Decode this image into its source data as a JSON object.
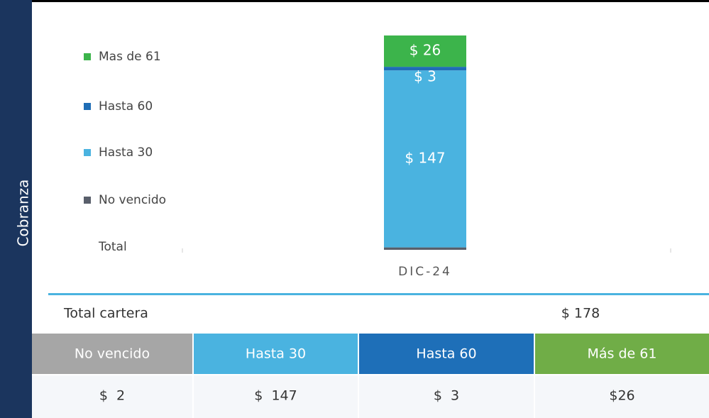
{
  "side_label": "Cobranza",
  "chart_data": {
    "type": "stacked_bar",
    "categories": [
      "DIC-24"
    ],
    "series": [
      {
        "name": "No vencido",
        "color": "#595f6b",
        "values": [
          2
        ],
        "value_labels": [
          "$ 2"
        ]
      },
      {
        "name": "Hasta 30",
        "color": "#4ab3e0",
        "values": [
          147
        ],
        "value_labels": [
          "$ 147"
        ]
      },
      {
        "name": "Hasta 60",
        "color": "#1f6db5",
        "values": [
          3
        ],
        "value_labels": [
          "$ 3"
        ]
      },
      {
        "name": "Mas de 61",
        "color": "#3cb44b",
        "values": [
          26
        ],
        "value_labels": [
          "$ 26"
        ]
      }
    ],
    "legend_total": "Total"
  },
  "table": {
    "total_label": "Total cartera",
    "total_value": "$ 178",
    "columns": [
      {
        "header": "No vencido",
        "value": "$  2",
        "color": "#a6a6a6"
      },
      {
        "header": "Hasta 30",
        "value": "$  147",
        "color": "#4ab3e0"
      },
      {
        "header": "Hasta 60",
        "value": "$  3",
        "color": "#1e6fb8"
      },
      {
        "header": "Más de 61",
        "value": "$26",
        "color": "#70ad47"
      }
    ]
  }
}
